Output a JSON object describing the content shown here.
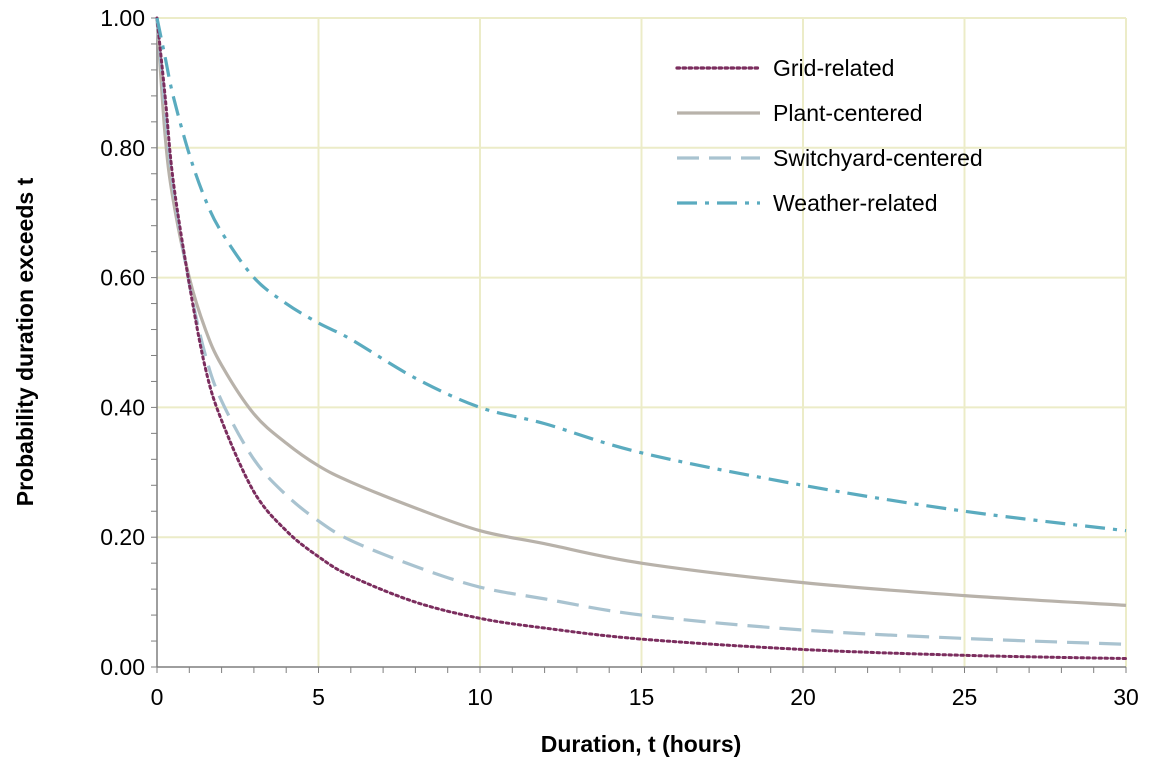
{
  "chart_data": {
    "type": "line",
    "xlabel": "Duration, t (hours)",
    "ylabel": "Probability duration exceeds t",
    "xlim": [
      0,
      30
    ],
    "ylim": [
      0,
      1
    ],
    "x_ticks": [
      "0",
      "5",
      "10",
      "15",
      "20",
      "25",
      "30"
    ],
    "y_ticks": [
      "0.00",
      "0.20",
      "0.40",
      "0.60",
      "0.80",
      "1.00"
    ],
    "grid": true,
    "legend_position": "top-right",
    "x": [
      0,
      0.25,
      0.5,
      1,
      1.5,
      2,
      3,
      4,
      5,
      6,
      8,
      10,
      12,
      15,
      20,
      25,
      30
    ],
    "series": [
      {
        "name": "Grid-related",
        "color": "#7B2D5E",
        "dash": "dotted",
        "values": [
          1.0,
          0.88,
          0.75,
          0.59,
          0.46,
          0.38,
          0.27,
          0.21,
          0.17,
          0.14,
          0.1,
          0.075,
          0.06,
          0.043,
          0.027,
          0.018,
          0.013
        ]
      },
      {
        "name": "Plant-centered",
        "color": "#B8B2AA",
        "dash": "solid",
        "values": [
          1.0,
          0.82,
          0.72,
          0.6,
          0.52,
          0.465,
          0.39,
          0.345,
          0.31,
          0.285,
          0.245,
          0.21,
          0.19,
          0.16,
          0.13,
          0.11,
          0.095
        ]
      },
      {
        "name": "Switchyard-centered",
        "color": "#A9C3D0",
        "dash": "dashed",
        "values": [
          1.0,
          0.86,
          0.74,
          0.59,
          0.48,
          0.41,
          0.32,
          0.265,
          0.225,
          0.195,
          0.155,
          0.123,
          0.105,
          0.08,
          0.057,
          0.044,
          0.035
        ]
      },
      {
        "name": "Weather-related",
        "color": "#5AABBF",
        "dash": "dashdot",
        "values": [
          1.0,
          0.94,
          0.88,
          0.79,
          0.72,
          0.67,
          0.6,
          0.56,
          0.53,
          0.505,
          0.445,
          0.4,
          0.375,
          0.33,
          0.28,
          0.24,
          0.21
        ]
      }
    ]
  }
}
